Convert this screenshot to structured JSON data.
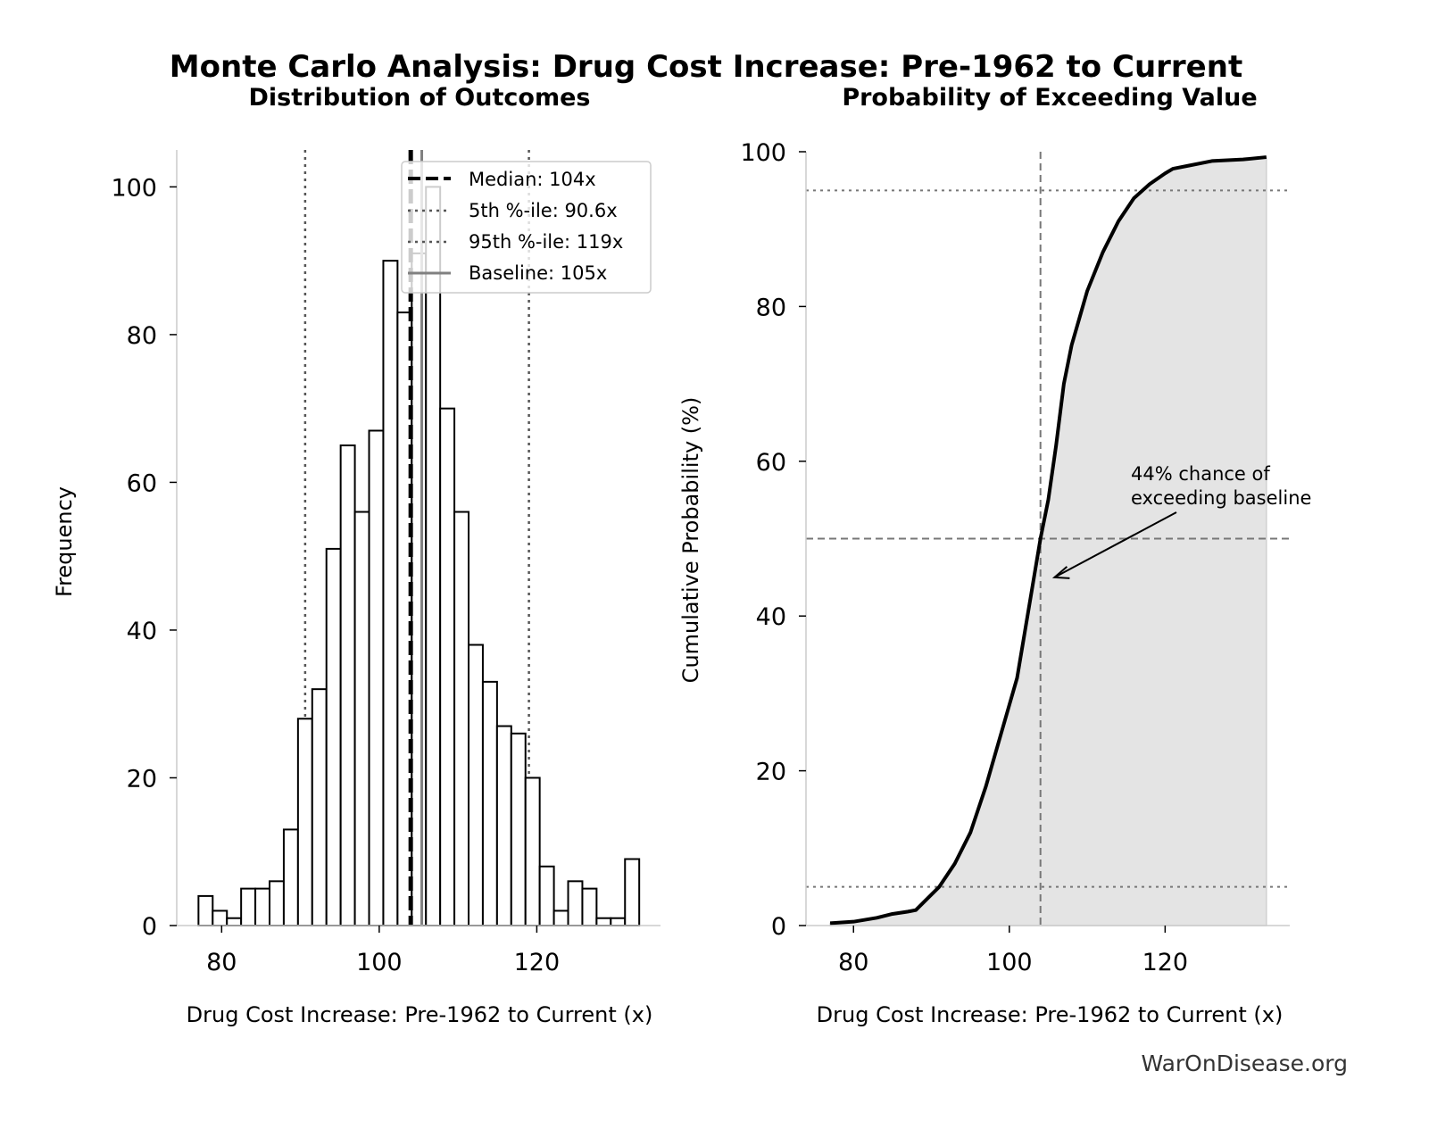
{
  "title": "Monte Carlo Analysis: Drug Cost Increase: Pre-1962 to Current",
  "watermark": "WarOnDisease.org",
  "colors": {
    "bar_edge": "#000000",
    "bar_fill": "#ffffff",
    "fill_area": "#e4e4e4",
    "ref_line": "#555555",
    "baseline": "#808080",
    "spine": "#cccccc"
  },
  "chart_data": [
    {
      "type": "bar",
      "subtype": "histogram",
      "title": "Distribution of Outcomes",
      "xlabel": "Drug Cost Increase: Pre-1962 to Current (x)",
      "ylabel": "Frequency",
      "xlim": [
        74.3,
        135.7
      ],
      "ylim": [
        0,
        105
      ],
      "xticks": [
        "80",
        "100",
        "120"
      ],
      "yticks": [
        "0",
        "20",
        "40",
        "60",
        "80",
        "100"
      ],
      "bin_start": 77.06,
      "bin_end": 133.0,
      "values": [
        4,
        2,
        1,
        5,
        5,
        6,
        13,
        28,
        32,
        51,
        65,
        56,
        67,
        90,
        83,
        91,
        100,
        70,
        56,
        38,
        33,
        27,
        26,
        20,
        8,
        2,
        6,
        5,
        1,
        1,
        9
      ],
      "grid": false,
      "legend_position": "top-right",
      "reference_lines": [
        {
          "label": "Median: 104x",
          "x": 104,
          "style": "dashed",
          "color": "#000000"
        },
        {
          "label": "5th %-ile: 90.6x",
          "x": 90.6,
          "style": "dotted",
          "color": "#555555"
        },
        {
          "label": "95th %-ile: 119x",
          "x": 119,
          "style": "dotted",
          "color": "#555555"
        },
        {
          "label": "Baseline: 105x",
          "x": 105.4,
          "style": "solid",
          "color": "#808080"
        }
      ]
    },
    {
      "type": "area",
      "title": "Probability of Exceeding Value",
      "xlabel": "Drug Cost Increase: Pre-1962 to Current (x)",
      "ylabel": "Cumulative Probability (%)",
      "xlim": [
        73.9,
        136
      ],
      "ylim": [
        0,
        100
      ],
      "xticks": [
        "80",
        "100",
        "120"
      ],
      "yticks": [
        "0",
        "20",
        "40",
        "60",
        "80",
        "100"
      ],
      "grid": false,
      "x": [
        77,
        80,
        83,
        85,
        87,
        88,
        90,
        91,
        92,
        93,
        95,
        97,
        99,
        101,
        102,
        103,
        104,
        105,
        106,
        107,
        108,
        110,
        112,
        114,
        116,
        118,
        120,
        121,
        123,
        126,
        130,
        133
      ],
      "y": [
        0.3,
        0.5,
        1,
        1.5,
        1.8,
        2,
        4,
        5,
        6.5,
        8,
        12,
        18,
        25,
        32,
        38,
        44,
        50,
        55,
        62,
        70,
        75,
        82,
        87,
        91,
        94,
        95.8,
        97.2,
        97.8,
        98.2,
        98.8,
        99,
        99.3
      ],
      "reference_lines": [
        {
          "axis": "x",
          "value": 104,
          "style": "dashed"
        },
        {
          "axis": "y",
          "value": 50,
          "style": "dashed"
        },
        {
          "axis": "y",
          "value": 95,
          "style": "dotted"
        },
        {
          "axis": "y",
          "value": 5,
          "style": "dotted"
        }
      ],
      "annotation": {
        "lines": [
          "44% chance of",
          "exceeding baseline"
        ],
        "arrow_to": [
          105.8,
          45
        ]
      }
    }
  ]
}
